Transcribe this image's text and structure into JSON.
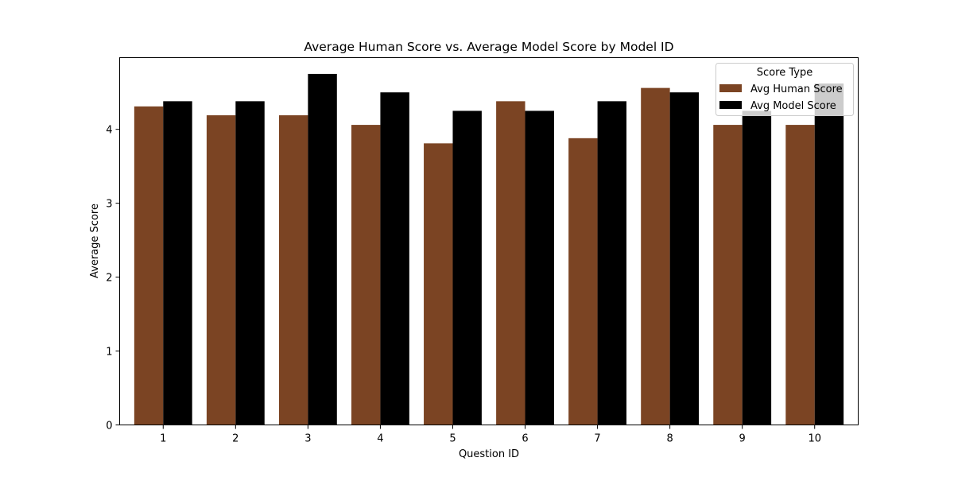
{
  "chart_data": {
    "type": "bar",
    "title": "Average Human Score vs. Average Model Score by Model ID",
    "xlabel": "Question ID",
    "ylabel": "Average Score",
    "categories": [
      "1",
      "2",
      "3",
      "4",
      "5",
      "6",
      "7",
      "8",
      "9",
      "10"
    ],
    "ylim": [
      0,
      4.97
    ],
    "yticks": [
      "0",
      "1",
      "2",
      "3",
      "4"
    ],
    "grid": false,
    "legend": {
      "title": "Score Type",
      "placement": "top-right"
    },
    "series": [
      {
        "name": "Avg Human Score",
        "color": "#7b4423",
        "values": [
          4.31,
          4.19,
          4.19,
          4.06,
          3.81,
          4.38,
          3.88,
          4.56,
          4.06,
          4.06
        ]
      },
      {
        "name": "Avg Model Score",
        "color": "#000000",
        "values": [
          4.38,
          4.38,
          4.75,
          4.5,
          4.25,
          4.25,
          4.38,
          4.5,
          4.25,
          4.62
        ]
      }
    ]
  }
}
